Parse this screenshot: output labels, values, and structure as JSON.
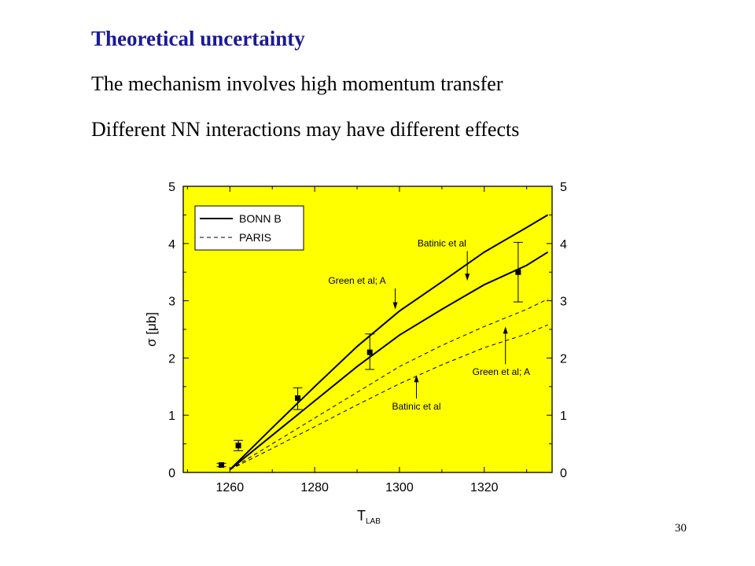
{
  "slide": {
    "title": "Theoretical uncertainty",
    "bullets": [
      "The mechanism involves high momentum transfer",
      "Different  NN interactions may have different effects"
    ],
    "page_number": "30"
  },
  "colors": {
    "title": "#1a1a99",
    "plot_background": "#ffff00",
    "ink": "#000000"
  },
  "chart_data": {
    "type": "line",
    "xlabel": "T_LAB",
    "xlabel_main": "T",
    "xlabel_sub": "LAB",
    "ylabel": "σ [μb]",
    "xlim": [
      1249,
      1336
    ],
    "ylim": [
      0,
      5
    ],
    "x_ticks": [
      1260,
      1280,
      1300,
      1320
    ],
    "y_ticks": [
      0,
      1,
      2,
      3,
      4,
      5
    ],
    "grid": false,
    "legend_position": "top-left",
    "legend": [
      {
        "label": "BONN B",
        "style": "solid"
      },
      {
        "label": "PARIS",
        "style": "dashed"
      }
    ],
    "series": [
      {
        "group": "BONN B",
        "style": "solid",
        "width": 2,
        "x": [
          1260,
          1270,
          1280,
          1290,
          1300,
          1310,
          1320,
          1330,
          1335
        ],
        "y": [
          0.05,
          0.78,
          1.5,
          2.2,
          2.82,
          3.33,
          3.85,
          4.28,
          4.5
        ]
      },
      {
        "group": "BONN B",
        "style": "solid",
        "width": 2,
        "x": [
          1260,
          1270,
          1280,
          1290,
          1300,
          1310,
          1320,
          1330,
          1335
        ],
        "y": [
          0.05,
          0.65,
          1.25,
          1.85,
          2.4,
          2.85,
          3.28,
          3.62,
          3.85
        ]
      },
      {
        "group": "PARIS",
        "style": "dashed",
        "width": 1,
        "x": [
          1260,
          1270,
          1280,
          1290,
          1300,
          1310,
          1320,
          1330,
          1335
        ],
        "y": [
          0.05,
          0.5,
          0.95,
          1.4,
          1.85,
          2.22,
          2.55,
          2.85,
          3.03
        ]
      },
      {
        "group": "PARIS",
        "style": "dashed",
        "width": 1,
        "x": [
          1260,
          1270,
          1280,
          1290,
          1300,
          1310,
          1320,
          1330,
          1335
        ],
        "y": [
          0.05,
          0.42,
          0.8,
          1.18,
          1.55,
          1.88,
          2.18,
          2.42,
          2.58
        ]
      }
    ],
    "data_points": [
      {
        "x": 1258,
        "y": 0.13,
        "err_lo": 0.1,
        "err_hi": 0.16
      },
      {
        "x": 1262,
        "y": 0.47,
        "err_lo": 0.38,
        "err_hi": 0.56
      },
      {
        "x": 1276,
        "y": 1.3,
        "err_lo": 1.1,
        "err_hi": 1.48
      },
      {
        "x": 1293,
        "y": 2.1,
        "err_lo": 1.8,
        "err_hi": 2.42
      },
      {
        "x": 1328,
        "y": 3.5,
        "err_lo": 2.98,
        "err_hi": 4.02
      }
    ],
    "annotations": [
      {
        "text": "Batinic et al",
        "arrow_x": 1316,
        "arrow_y": 3.35,
        "direction": "down",
        "text_x": 1310,
        "text_y": 3.95
      },
      {
        "text": "Green et al; A",
        "arrow_x": 1299,
        "arrow_y": 2.85,
        "direction": "down",
        "text_x": 1290,
        "text_y": 3.3
      },
      {
        "text": "Green et al; A",
        "arrow_x": 1325,
        "arrow_y": 2.55,
        "direction": "up",
        "text_x": 1324,
        "text_y": 1.7
      },
      {
        "text": "Batinic et al",
        "arrow_x": 1304,
        "arrow_y": 1.7,
        "direction": "up",
        "text_x": 1304,
        "text_y": 1.1
      }
    ]
  }
}
